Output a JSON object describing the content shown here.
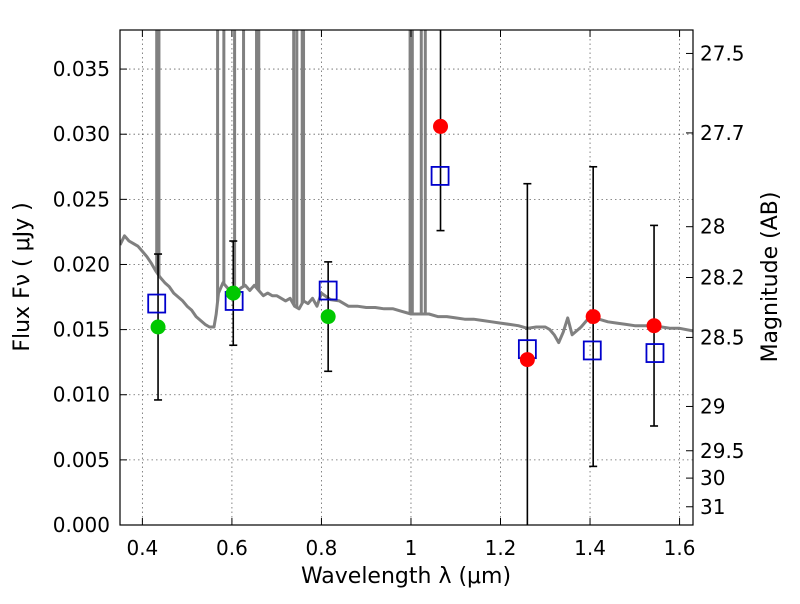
{
  "chart_data": {
    "type": "scatter",
    "title": "",
    "xlabel": "Wavelength  λ (μm)",
    "ylabel": "Flux  Fν  ( μJy )",
    "y2label": "Magnitude (AB)",
    "xlim": [
      0.35,
      1.63
    ],
    "ylim": [
      0.0,
      0.038
    ],
    "grid": true,
    "xticks": [
      0.4,
      0.6,
      0.8,
      1.0,
      1.2,
      1.4,
      1.6
    ],
    "xtick_labels": [
      "0.4",
      "0.6",
      "0.8",
      "1",
      "1.2",
      "1.4",
      "1.6"
    ],
    "yticks": [
      0.0,
      0.005,
      0.01,
      0.015,
      0.02,
      0.025,
      0.03,
      0.035
    ],
    "ytick_labels": [
      "0.000",
      "0.005",
      "0.010",
      "0.015",
      "0.020",
      "0.025",
      "0.030",
      "0.035"
    ],
    "y2ticks": [
      {
        "label": "27.5",
        "flux": 0.0362
      },
      {
        "label": "27.7",
        "flux": 0.0301
      },
      {
        "label": "28",
        "flux": 0.0229
      },
      {
        "label": "28.2",
        "flux": 0.019
      },
      {
        "label": "28.5",
        "flux": 0.0144
      },
      {
        "label": "29",
        "flux": 0.0091
      },
      {
        "label": "29.5",
        "flux": 0.0057
      },
      {
        "label": "30",
        "flux": 0.0036
      },
      {
        "label": "31",
        "flux": 0.0014
      }
    ],
    "colors": {
      "sed": "#808080",
      "model": "#0000cc",
      "green": "#00c800",
      "red": "#ff0000",
      "error": "#000000"
    },
    "series": [
      {
        "kind": "sed_line",
        "x": [
          0.35,
          0.36,
          0.37,
          0.38,
          0.39,
          0.4,
          0.41,
          0.42,
          0.43,
          0.44,
          0.45,
          0.46,
          0.47,
          0.48,
          0.49,
          0.5,
          0.51,
          0.52,
          0.53,
          0.54,
          0.55,
          0.56,
          0.565,
          0.57,
          0.58,
          0.59,
          0.6,
          0.61,
          0.62,
          0.63,
          0.64,
          0.65,
          0.66,
          0.67,
          0.68,
          0.69,
          0.7,
          0.71,
          0.72,
          0.73,
          0.74,
          0.75,
          0.76,
          0.77,
          0.78,
          0.79,
          0.8,
          0.82,
          0.84,
          0.86,
          0.88,
          0.9,
          0.92,
          0.94,
          0.96,
          0.98,
          1.0,
          1.02,
          1.04,
          1.06,
          1.08,
          1.1,
          1.12,
          1.14,
          1.16,
          1.18,
          1.2,
          1.22,
          1.24,
          1.26,
          1.28,
          1.3,
          1.31,
          1.32,
          1.33,
          1.34,
          1.35,
          1.36,
          1.38,
          1.4,
          1.42,
          1.44,
          1.46,
          1.48,
          1.5,
          1.52,
          1.54,
          1.56,
          1.58,
          1.6,
          1.63
        ],
        "y": [
          0.0215,
          0.0222,
          0.0218,
          0.0216,
          0.0214,
          0.021,
          0.0206,
          0.0201,
          0.0195,
          0.019,
          0.0186,
          0.0183,
          0.0178,
          0.0175,
          0.0172,
          0.0168,
          0.0165,
          0.016,
          0.0157,
          0.0154,
          0.0152,
          0.0152,
          0.0162,
          0.0178,
          0.0186,
          0.0182,
          0.018,
          0.0178,
          0.0182,
          0.0184,
          0.018,
          0.0184,
          0.018,
          0.0176,
          0.0178,
          0.0176,
          0.0176,
          0.0174,
          0.0172,
          0.0174,
          0.0168,
          0.0166,
          0.0172,
          0.017,
          0.0174,
          0.0168,
          0.0178,
          0.0173,
          0.0172,
          0.0168,
          0.0168,
          0.0167,
          0.0167,
          0.0166,
          0.0166,
          0.0164,
          0.0162,
          0.0162,
          0.0162,
          0.016,
          0.016,
          0.0159,
          0.0158,
          0.0158,
          0.0157,
          0.0156,
          0.0155,
          0.0154,
          0.0153,
          0.0151,
          0.0152,
          0.0152,
          0.015,
          0.0146,
          0.014,
          0.0148,
          0.0159,
          0.0146,
          0.0152,
          0.016,
          0.0158,
          0.0156,
          0.0155,
          0.0154,
          0.0153,
          0.0153,
          0.0153,
          0.0152,
          0.0151,
          0.0151,
          0.0149
        ]
      },
      {
        "kind": "emission_lines",
        "x": [
          0.432,
          0.437,
          0.568,
          0.582,
          0.606,
          0.626,
          0.655,
          0.66,
          0.738,
          0.745,
          0.757,
          0.76,
          0.998,
          1.003,
          1.023,
          1.032
        ],
        "y": [
          0.038,
          0.038,
          0.038,
          0.038,
          0.038,
          0.038,
          0.038,
          0.038,
          0.038,
          0.038,
          0.038,
          0.038,
          0.038,
          0.038,
          0.038,
          0.038
        ]
      },
      {
        "kind": "model_squares",
        "x": [
          0.432,
          0.605,
          0.815,
          1.065,
          1.26,
          1.405,
          1.545
        ],
        "y": [
          0.017,
          0.0172,
          0.018,
          0.0268,
          0.0135,
          0.0134,
          0.0132
        ]
      },
      {
        "kind": "green_points",
        "x": [
          0.435,
          0.603,
          0.815
        ],
        "y": [
          0.0152,
          0.0178,
          0.016
        ],
        "yerr": [
          0.0056,
          0.004,
          0.0042
        ]
      },
      {
        "kind": "red_points",
        "x": [
          1.066,
          1.26,
          1.407,
          1.543
        ],
        "y": [
          0.0306,
          0.0127,
          0.016,
          0.0153
        ],
        "yerr": [
          0.008,
          0.0135,
          0.0115,
          0.0077
        ]
      }
    ]
  }
}
